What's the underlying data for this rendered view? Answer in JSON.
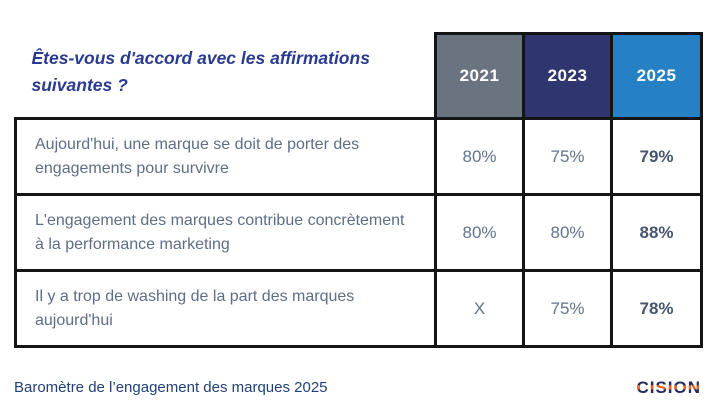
{
  "chart_data": {
    "type": "table",
    "title": "Êtes-vous d'accord avec les affirmations suivantes ?",
    "columns": [
      "2021",
      "2023",
      "2025"
    ],
    "rows": [
      {
        "statement": "Aujourd'hui, une marque se doit de porter des engagements pour survivre",
        "values": [
          "80%",
          "75%",
          "79%"
        ]
      },
      {
        "statement": "L'engagement des marques contribue concrètement à la performance marketing",
        "values": [
          "80%",
          "80%",
          "88%"
        ]
      },
      {
        "statement": "Il y a trop de washing de la part des marques aujourd'hui",
        "values": [
          "X",
          "75%",
          "78%"
        ]
      }
    ],
    "legend_position": "none",
    "notes": "2025 column values emphasized in bold; X indicates no data for 2021"
  },
  "footer": {
    "source": "Baromètre de l’engagement des marques 2025",
    "logo": "CISION"
  },
  "colors": {
    "header_2021_bg": "#6a7380",
    "header_2023_bg": "#2f356e",
    "header_2025_bg": "#2580c4",
    "title_text": "#2a3b8f",
    "body_text": "#5d6e85",
    "border": "#141414",
    "logo_navy": "#242a5c",
    "logo_orange": "#f26322"
  }
}
